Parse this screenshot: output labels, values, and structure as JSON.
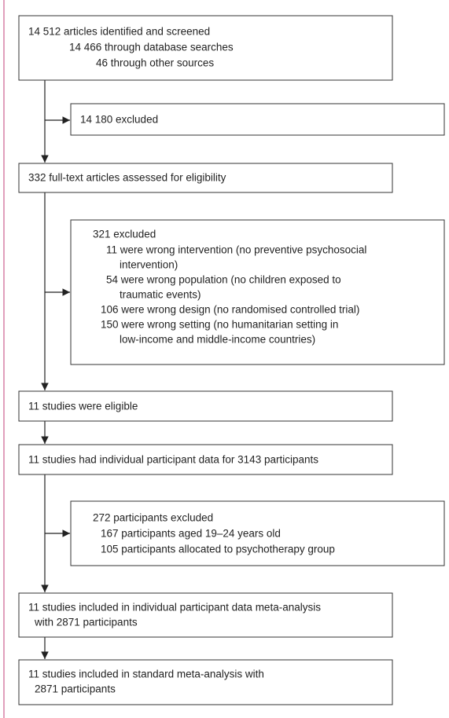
{
  "boxes": [
    {
      "lines": [
        "14 512 articles identified and screened",
        "14 466 through database searches",
        "46 through other sources"
      ]
    },
    {
      "lines": [
        "14 180 excluded"
      ]
    },
    {
      "lines": [
        "332 full-text articles assessed for eligibility"
      ]
    },
    {
      "lines": [
        "321 excluded",
        "11 were wrong intervention (no preventive psychosocial",
        "intervention)",
        "54 were wrong population (no children exposed to",
        "traumatic events)",
        "106 were wrong design (no randomised controlled trial)",
        "150 were wrong setting (no humanitarian setting in",
        "low-income and middle-income countries)"
      ]
    },
    {
      "lines": [
        "11 studies were eligible"
      ]
    },
    {
      "lines": [
        "11 studies had individual participant data for 3143 participants"
      ]
    },
    {
      "lines": [
        "272 participants excluded",
        "167 participants aged 19–24 years old",
        "105 participants allocated to psychotherapy group"
      ]
    },
    {
      "lines": [
        "11 studies included in individual participant data meta-analysis",
        "with 2871 participants"
      ]
    },
    {
      "lines": [
        "11 studies included in standard meta-analysis with",
        "2871 participants"
      ]
    }
  ]
}
